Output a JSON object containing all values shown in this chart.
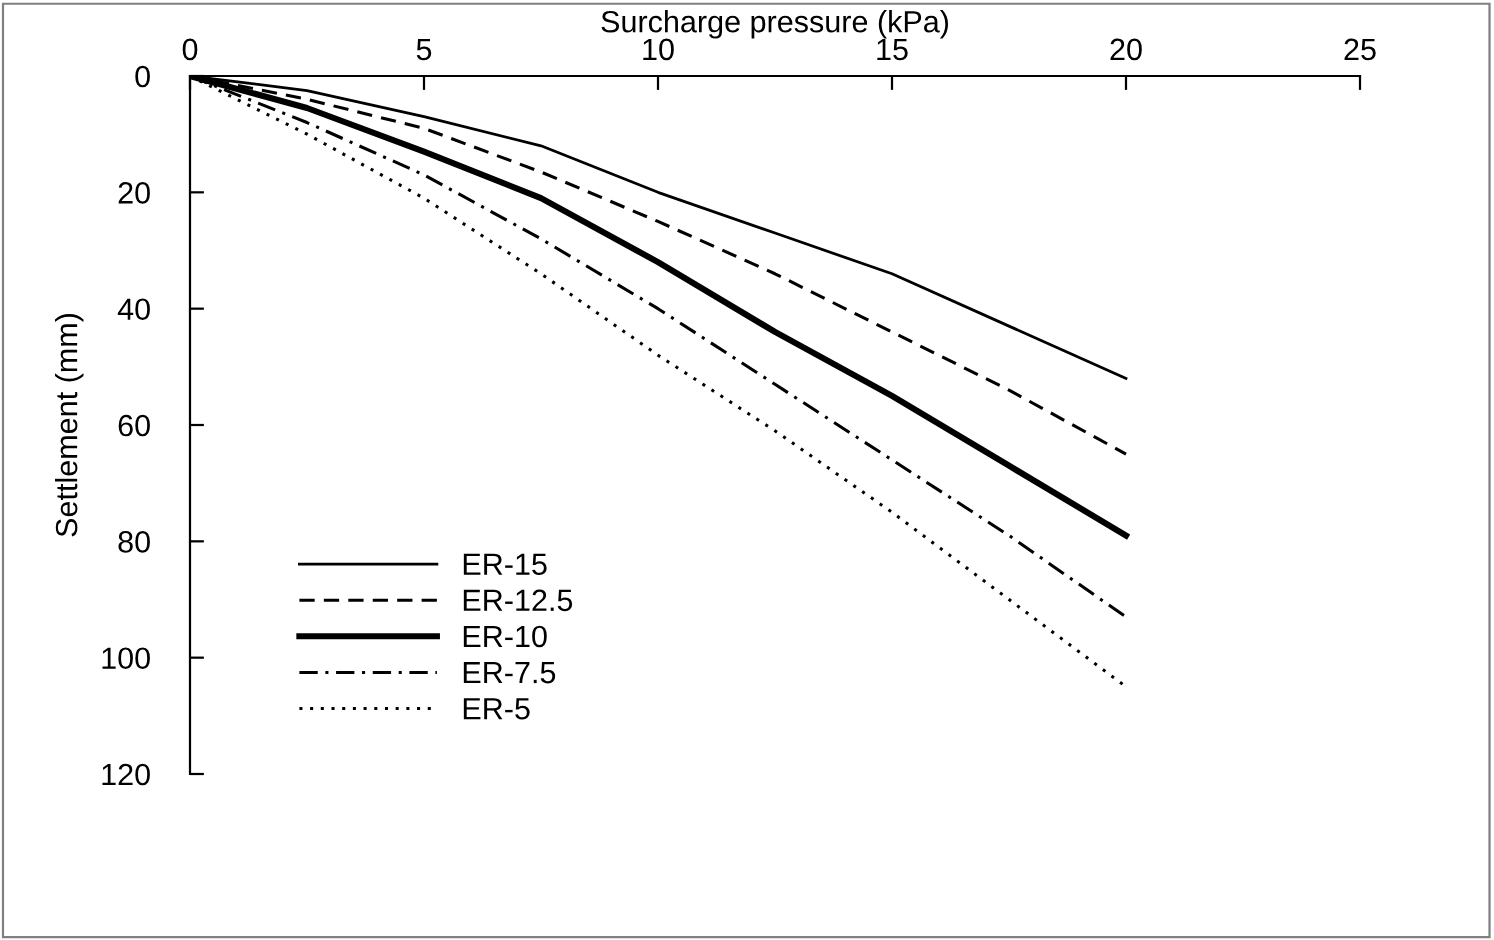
{
  "chart_data": {
    "type": "line",
    "xlabel": "Surcharge pressure (kPa)",
    "ylabel": "Settlement (mm)",
    "x": [
      0,
      2.5,
      5,
      7.5,
      10,
      12.5,
      15,
      17.5,
      20
    ],
    "xlim": [
      0,
      25
    ],
    "xticks": [
      0,
      5,
      10,
      15,
      20,
      25
    ],
    "ylim": [
      120,
      0
    ],
    "yticks": [
      0,
      20,
      40,
      60,
      80,
      100,
      120
    ],
    "grid": false,
    "legend": "bottom left",
    "marker": "none",
    "series": [
      {
        "name": "ER-15",
        "color": "#000000",
        "line_style": "solid",
        "values": [
          0,
          2.5,
          7,
          12,
          20,
          27,
          34,
          43,
          52
        ]
      },
      {
        "name": "ER-12.5",
        "color": "#000000",
        "line_style": "dashed",
        "values": [
          0,
          4,
          9,
          16.5,
          25,
          34,
          44,
          54,
          65
        ]
      },
      {
        "name": "ER-10",
        "color": "#000000",
        "line_style": "solid",
        "values": [
          0,
          5.5,
          13,
          21,
          32,
          44,
          55,
          67,
          79
        ]
      },
      {
        "name": "ER-7.5",
        "color": "#000000",
        "line_style": "dashdot",
        "values": [
          0,
          8,
          17,
          28,
          40,
          53,
          66,
          79,
          93
        ]
      },
      {
        "name": "ER-5",
        "color": "#000000",
        "line_style": "dotted",
        "values": [
          0,
          10,
          21,
          34,
          48,
          61,
          75,
          90,
          105
        ]
      }
    ]
  }
}
